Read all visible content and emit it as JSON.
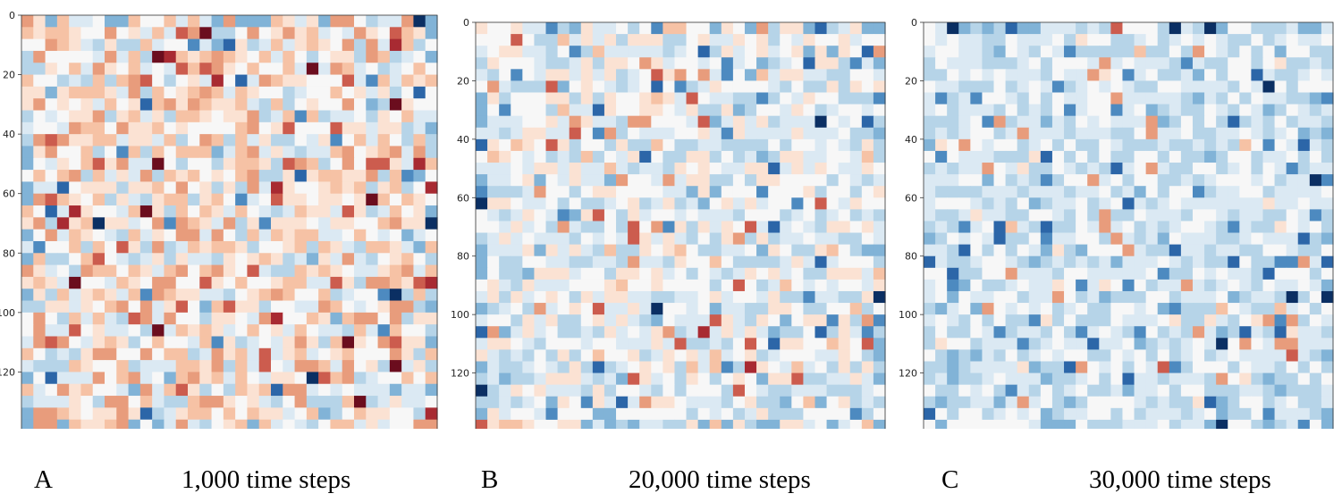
{
  "palette": [
    "#0b2f63",
    "#2c66a8",
    "#4d8ac0",
    "#81b3d7",
    "#b6d4e8",
    "#dbe9f3",
    "#f7f7f7",
    "#fbe2d3",
    "#f6c2a5",
    "#e89c7c",
    "#cc5c4e",
    "#a82a32",
    "#6b0d1e"
  ],
  "chart_data": [
    {
      "type": "heatmap",
      "panel_label": "A",
      "caption": "1,000 time steps",
      "grid_size": [
        140,
        140
      ],
      "xlim": [
        0,
        140
      ],
      "ylim": [
        140,
        0
      ],
      "x_ticks": [
        0,
        20,
        40,
        60,
        80,
        100,
        120
      ],
      "y_ticks": [
        0,
        20,
        40,
        60,
        80,
        100,
        120
      ],
      "colormap": "RdBu_r",
      "mean_value": 0.58,
      "seed": 11
    },
    {
      "type": "heatmap",
      "panel_label": "B",
      "caption": "20,000 time steps",
      "grid_size": [
        140,
        140
      ],
      "xlim": [
        0,
        140
      ],
      "ylim": [
        140,
        0
      ],
      "x_ticks": [
        0,
        20,
        40,
        60,
        80,
        100,
        120
      ],
      "y_ticks": [
        0,
        20,
        40,
        60,
        80,
        100,
        120
      ],
      "colormap": "RdBu_r",
      "mean_value": 0.42,
      "seed": 11
    },
    {
      "type": "heatmap",
      "panel_label": "C",
      "caption": "30,000 time steps",
      "grid_size": [
        140,
        140
      ],
      "xlim": [
        0,
        140
      ],
      "ylim": [
        140,
        0
      ],
      "x_ticks": [
        0,
        20,
        40,
        60,
        80,
        100,
        120
      ],
      "y_ticks": [
        0,
        20,
        40,
        60,
        80,
        100,
        120
      ],
      "colormap": "RdBu_r",
      "mean_value": 0.32,
      "seed": 11
    }
  ]
}
